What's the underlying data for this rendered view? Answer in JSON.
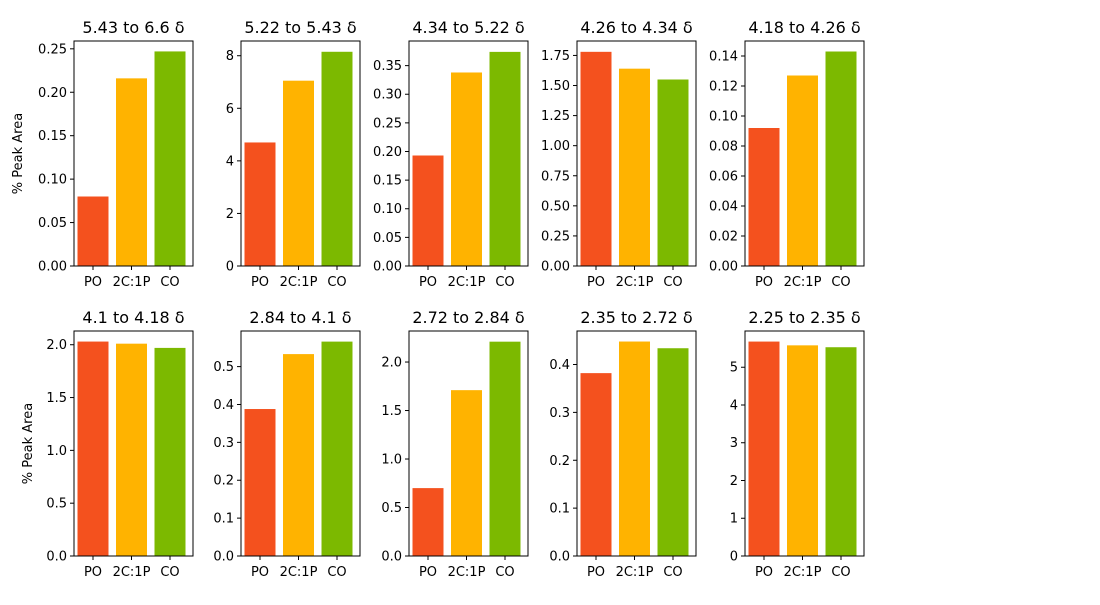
{
  "colors": {
    "PO": "#f4511e",
    "2C:1P": "#ffb300",
    "CO": "#7cb900",
    "axis": "#000000"
  },
  "chart_data": [
    {
      "type": "bar",
      "title": "5.43 to 6.6 δ",
      "ylabel": "% Peak Area",
      "categories": [
        "PO",
        "2C:1P",
        "CO"
      ],
      "values": [
        0.08,
        0.216,
        0.247
      ],
      "ylim": [
        0,
        0.259
      ],
      "yticks": [
        0.0,
        0.05,
        0.1,
        0.15,
        0.2,
        0.25
      ],
      "ytick_labels": [
        "0.00",
        "0.05",
        "0.10",
        "0.15",
        "0.20",
        "0.25"
      ],
      "grid": false
    },
    {
      "type": "bar",
      "title": "5.22 to 5.43 δ",
      "ylabel": "",
      "categories": [
        "PO",
        "2C:1P",
        "CO"
      ],
      "values": [
        4.7,
        7.05,
        8.15
      ],
      "ylim": [
        0,
        8.56
      ],
      "yticks": [
        0,
        2,
        4,
        6,
        8
      ],
      "ytick_labels": [
        "0",
        "2",
        "4",
        "6",
        "8"
      ],
      "grid": false
    },
    {
      "type": "bar",
      "title": "4.34 to 5.22 δ",
      "ylabel": "",
      "categories": [
        "PO",
        "2C:1P",
        "CO"
      ],
      "values": [
        0.193,
        0.338,
        0.374
      ],
      "ylim": [
        0,
        0.393
      ],
      "yticks": [
        0.0,
        0.05,
        0.1,
        0.15,
        0.2,
        0.25,
        0.3,
        0.35
      ],
      "ytick_labels": [
        "0.00",
        "0.05",
        "0.10",
        "0.15",
        "0.20",
        "0.25",
        "0.30",
        "0.35"
      ],
      "grid": false
    },
    {
      "type": "bar",
      "title": "4.26 to 4.34 δ",
      "ylabel": "",
      "categories": [
        "PO",
        "2C:1P",
        "CO"
      ],
      "values": [
        1.78,
        1.64,
        1.55
      ],
      "ylim": [
        0,
        1.87
      ],
      "yticks": [
        0.0,
        0.25,
        0.5,
        0.75,
        1.0,
        1.25,
        1.5,
        1.75
      ],
      "ytick_labels": [
        "0.00",
        "0.25",
        "0.50",
        "0.75",
        "1.00",
        "1.25",
        "1.50",
        "1.75"
      ],
      "grid": false
    },
    {
      "type": "bar",
      "title": "4.18 to 4.26 δ",
      "ylabel": "",
      "categories": [
        "PO",
        "2C:1P",
        "CO"
      ],
      "values": [
        0.092,
        0.127,
        0.143
      ],
      "ylim": [
        0,
        0.15
      ],
      "yticks": [
        0.0,
        0.02,
        0.04,
        0.06,
        0.08,
        0.1,
        0.12,
        0.14
      ],
      "ytick_labels": [
        "0.00",
        "0.02",
        "0.04",
        "0.06",
        "0.08",
        "0.10",
        "0.12",
        "0.14"
      ],
      "grid": false
    },
    {
      "type": "bar",
      "title": "4.1 to 4.18 δ",
      "ylabel": "% Peak Area",
      "categories": [
        "PO",
        "2C:1P",
        "CO"
      ],
      "values": [
        2.03,
        2.01,
        1.97
      ],
      "ylim": [
        0,
        2.13
      ],
      "yticks": [
        0.0,
        0.5,
        1.0,
        1.5,
        2.0
      ],
      "ytick_labels": [
        "0.0",
        "0.5",
        "1.0",
        "1.5",
        "2.0"
      ],
      "grid": false
    },
    {
      "type": "bar",
      "title": "2.84 to 4.1 δ",
      "ylabel": "",
      "categories": [
        "PO",
        "2C:1P",
        "CO"
      ],
      "values": [
        0.388,
        0.533,
        0.566
      ],
      "ylim": [
        0,
        0.594
      ],
      "yticks": [
        0.0,
        0.1,
        0.2,
        0.3,
        0.4,
        0.5
      ],
      "ytick_labels": [
        "0.0",
        "0.1",
        "0.2",
        "0.3",
        "0.4",
        "0.5"
      ],
      "grid": false
    },
    {
      "type": "bar",
      "title": "2.72 to 2.84 δ",
      "ylabel": "",
      "categories": [
        "PO",
        "2C:1P",
        "CO"
      ],
      "values": [
        0.7,
        1.71,
        2.21
      ],
      "ylim": [
        0,
        2.32
      ],
      "yticks": [
        0.0,
        0.5,
        1.0,
        1.5,
        2.0
      ],
      "ytick_labels": [
        "0.0",
        "0.5",
        "1.0",
        "1.5",
        "2.0"
      ],
      "grid": false
    },
    {
      "type": "bar",
      "title": "2.35 to 2.72 δ",
      "ylabel": "",
      "categories": [
        "PO",
        "2C:1P",
        "CO"
      ],
      "values": [
        0.382,
        0.448,
        0.434
      ],
      "ylim": [
        0,
        0.47
      ],
      "yticks": [
        0.0,
        0.1,
        0.2,
        0.3,
        0.4
      ],
      "ytick_labels": [
        "0.0",
        "0.1",
        "0.2",
        "0.3",
        "0.4"
      ],
      "grid": false
    },
    {
      "type": "bar",
      "title": "2.25 to 2.35 δ",
      "ylabel": "",
      "categories": [
        "PO",
        "2C:1P",
        "CO"
      ],
      "values": [
        5.68,
        5.58,
        5.53
      ],
      "ylim": [
        0,
        5.96
      ],
      "yticks": [
        0,
        1,
        2,
        3,
        4,
        5
      ],
      "ytick_labels": [
        "0",
        "1",
        "2",
        "3",
        "4",
        "5"
      ],
      "grid": false
    }
  ]
}
